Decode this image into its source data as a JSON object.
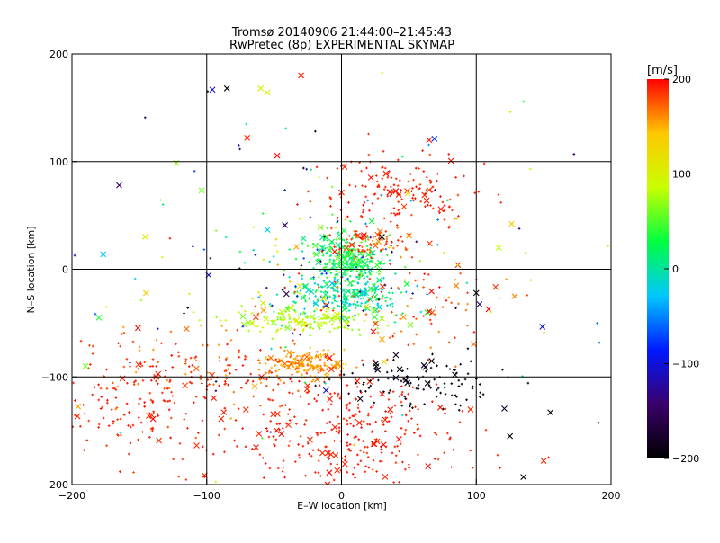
{
  "chart_data": {
    "type": "scatter",
    "title": "Tromsø 20140906 21:44:00–21:45:43",
    "subtitle": "RwPretec (8p) EXPERIMENTAL SKYMAP",
    "xlabel": "E–W location [km]",
    "ylabel": "N–S location [km]",
    "xlim": [
      -200,
      200
    ],
    "ylim": [
      -200,
      200
    ],
    "xticks": [
      -200,
      -100,
      0,
      100,
      200
    ],
    "yticks": [
      -200,
      -100,
      0,
      100,
      200
    ],
    "grid": true,
    "colorbar": {
      "label": "[m/s]",
      "min": -200,
      "max": 200,
      "ticks": [
        200,
        100,
        0,
        -100,
        -200
      ],
      "colormap": [
        "#000000",
        "#3a006a",
        "#0018ff",
        "#00c8ff",
        "#00ff40",
        "#c8ff00",
        "#ffc800",
        "#ff0000"
      ]
    },
    "markers": {
      "small": "dot (cross-shaped)",
      "large": "x"
    },
    "clusters": [
      {
        "cx": 5,
        "cy": 10,
        "sx": 12,
        "sy": 12,
        "n": 260,
        "vmin": 0,
        "vmax": 60
      },
      {
        "cx": 5,
        "cy": -25,
        "sx": 20,
        "sy": 10,
        "n": 220,
        "vmin": -40,
        "vmax": 40
      },
      {
        "cx": -20,
        "cy": -48,
        "sx": 28,
        "sy": 6,
        "n": 150,
        "vmin": 60,
        "vmax": 110
      },
      {
        "cx": -25,
        "cy": -88,
        "sx": 14,
        "sy": 6,
        "n": 170,
        "vmin": 140,
        "vmax": 175
      },
      {
        "cx": 0,
        "cy": -150,
        "sx": 45,
        "sy": 28,
        "n": 340,
        "vmin": 185,
        "vmax": 200
      },
      {
        "cx": -150,
        "cy": -125,
        "sx": 35,
        "sy": 30,
        "n": 170,
        "vmin": 180,
        "vmax": 200
      },
      {
        "cx": -95,
        "cy": -90,
        "sx": 40,
        "sy": 20,
        "n": 120,
        "vmin": 150,
        "vmax": 200
      },
      {
        "cx": 40,
        "cy": 75,
        "sx": 30,
        "sy": 18,
        "n": 160,
        "vmin": 180,
        "vmax": 200
      },
      {
        "cx": 20,
        "cy": 25,
        "sx": 14,
        "sy": 6,
        "n": 70,
        "vmin": 160,
        "vmax": 200
      },
      {
        "cx": 55,
        "cy": -105,
        "sx": 28,
        "sy": 12,
        "n": 110,
        "vmin": -200,
        "vmax": -180
      },
      {
        "cx": -30,
        "cy": -15,
        "sx": 25,
        "sy": 25,
        "n": 80,
        "vmin": -200,
        "vmax": 200
      },
      {
        "cx": 60,
        "cy": -40,
        "sx": 30,
        "sy": 25,
        "n": 80,
        "vmin": 150,
        "vmax": 200
      },
      {
        "cx": 0,
        "cy": 0,
        "sx": 110,
        "sy": 90,
        "n": 160,
        "vmin": -200,
        "vmax": 200
      }
    ],
    "notable_points": [
      {
        "x": -85,
        "y": 168,
        "v": -200,
        "m": "x"
      },
      {
        "x": -60,
        "y": 168,
        "v": 100,
        "m": "x"
      },
      {
        "x": -55,
        "y": 164,
        "v": 100,
        "m": "x"
      },
      {
        "x": -30,
        "y": 180,
        "v": 190,
        "m": "x"
      },
      {
        "x": -70,
        "y": 122,
        "v": 190,
        "m": "x"
      },
      {
        "x": -165,
        "y": 78,
        "v": -140,
        "m": "x"
      },
      {
        "x": 65,
        "y": 120,
        "v": 190,
        "m": "x"
      },
      {
        "x": 30,
        "y": 30,
        "v": -200,
        "m": "x"
      },
      {
        "x": 155,
        "y": -133,
        "v": -200,
        "m": "x"
      },
      {
        "x": 135,
        "y": -193,
        "v": -200,
        "m": "x"
      },
      {
        "x": 125,
        "y": -155,
        "v": -200,
        "m": "x"
      },
      {
        "x": 100,
        "y": -22,
        "v": -200,
        "m": "x"
      },
      {
        "x": -145,
        "y": -22,
        "v": 140,
        "m": "x"
      },
      {
        "x": -180,
        "y": -45,
        "v": 40,
        "m": "x"
      },
      {
        "x": -190,
        "y": -90,
        "v": 60,
        "m": "x"
      },
      {
        "x": 150,
        "y": -178,
        "v": 190,
        "m": "x"
      },
      {
        "x": 140,
        "y": 93,
        "v": 80,
        "m": "dot"
      }
    ]
  }
}
